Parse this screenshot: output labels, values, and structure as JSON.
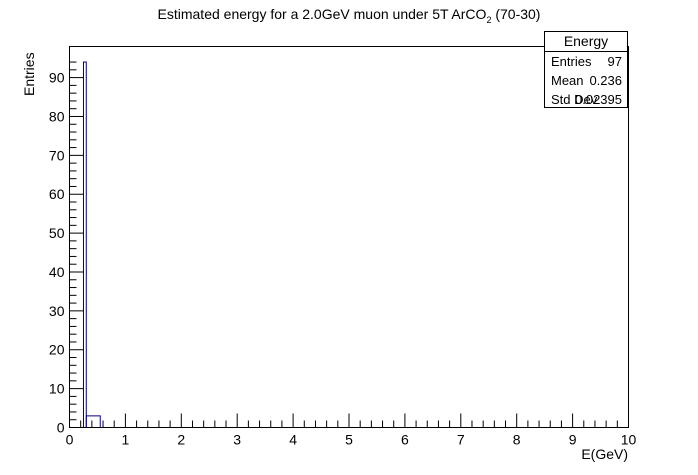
{
  "chart_data": {
    "type": "bar",
    "title": {
      "main": "Estimated energy for a 2.0GeV muon under 5T ArCO",
      "subscript": "2",
      "suffix": " (70-30)"
    },
    "xlabel": "E(GeV)",
    "ylabel": "Entries",
    "xlim": [
      0,
      10
    ],
    "ylim": [
      0,
      98
    ],
    "x_ticks": [
      0,
      1,
      2,
      3,
      4,
      5,
      6,
      7,
      8,
      9,
      10
    ],
    "y_ticks": [
      0,
      10,
      20,
      30,
      40,
      50,
      60,
      70,
      80,
      90
    ],
    "grid": false,
    "bins": [
      {
        "x0": 0.25,
        "x1": 0.25,
        "value": 0
      },
      {
        "x0": 0.25,
        "x1": 0.55,
        "value": 3
      }
    ],
    "bars": [
      {
        "x0": 0.25,
        "x1": 0.3,
        "value": 94
      },
      {
        "x0": 0.3,
        "x1": 0.55,
        "value": 3
      }
    ],
    "stats_box": {
      "name": "Energy",
      "rows": [
        {
          "label": "Entries",
          "value": "97"
        },
        {
          "label": "Mean",
          "value": "0.236"
        },
        {
          "label": "Std Dev",
          "value": "0.02395"
        }
      ]
    },
    "colors": {
      "line": "#00007f",
      "axis": "#000000"
    }
  }
}
